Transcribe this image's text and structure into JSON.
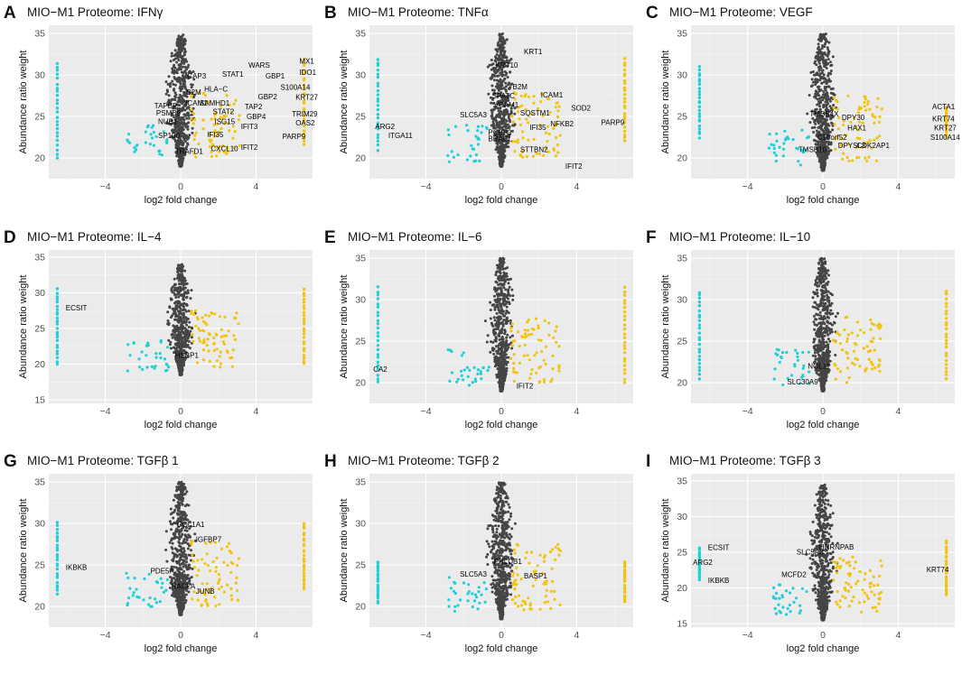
{
  "figure": {
    "colors": {
      "panel_bg": "#ebebeb",
      "grid_major": "#ffffff",
      "grid_minor": "#f5f5f5",
      "core": "#454545",
      "down": "#1fd0d8",
      "up": "#f2c410",
      "text": "#111111",
      "axis_text": "#4d4d4d"
    }
  },
  "chart_data": [
    {
      "type": "scatter",
      "panel": "A",
      "title": "MIO−M1 Proteome: IFNγ",
      "xlabel": "log2 fold change",
      "ylabel": "Abundance ratio weight",
      "xlim": [
        -7,
        7
      ],
      "ylim": [
        17.5,
        36
      ],
      "xticks": [
        -4,
        0,
        4
      ],
      "yticks": [
        20,
        25,
        30,
        35
      ],
      "core": {
        "center": 0,
        "ytop": 35,
        "ybottom": 19,
        "maxw": 1.0
      },
      "lanes": {
        "down": [
          20,
          31.5
        ],
        "up": [
          21.5,
          32
        ]
      },
      "labels": [
        {
          "text": "CAP3",
          "x": 0.35,
          "y": 29.6
        },
        {
          "text": "B2M",
          "x": 0.3,
          "y": 27.6
        },
        {
          "text": "HLA−C",
          "x": 1.25,
          "y": 28.0
        },
        {
          "text": "STAT1",
          "x": 2.2,
          "y": 29.8
        },
        {
          "text": "WARS",
          "x": 3.6,
          "y": 30.9
        },
        {
          "text": "GBP1",
          "x": 4.5,
          "y": 29.6
        },
        {
          "text": "GBP2",
          "x": 4.1,
          "y": 27.1
        },
        {
          "text": "S100A14",
          "x": 5.3,
          "y": 28.2
        },
        {
          "text": "MX1",
          "x": 6.3,
          "y": 31.4
        },
        {
          "text": "IDO1",
          "x": 6.3,
          "y": 30.0
        },
        {
          "text": "KRT27",
          "x": 6.1,
          "y": 27.0
        },
        {
          "text": "TRIM29",
          "x": 5.9,
          "y": 25.0
        },
        {
          "text": "OAS2",
          "x": 6.1,
          "y": 23.9
        },
        {
          "text": "PARP9",
          "x": 5.4,
          "y": 22.3
        },
        {
          "text": "TAPBP",
          "x": -1.4,
          "y": 26.0
        },
        {
          "text": "ICAM1",
          "x": 0.25,
          "y": 26.3
        },
        {
          "text": "SAMHD1",
          "x": 1.0,
          "y": 26.3
        },
        {
          "text": "TAP2",
          "x": 3.4,
          "y": 25.9
        },
        {
          "text": "STAT2",
          "x": 1.7,
          "y": 25.3
        },
        {
          "text": "PSMB9",
          "x": -1.3,
          "y": 25.1
        },
        {
          "text": "GBP4",
          "x": 3.5,
          "y": 24.7
        },
        {
          "text": "NUB1",
          "x": -1.2,
          "y": 24.1
        },
        {
          "text": "ISG15",
          "x": 1.8,
          "y": 24.1
        },
        {
          "text": "IFIT3",
          "x": 3.2,
          "y": 23.5
        },
        {
          "text": "IFI35",
          "x": 1.4,
          "y": 22.5
        },
        {
          "text": "SP100",
          "x": -1.2,
          "y": 22.4
        },
        {
          "text": "CXCL10",
          "x": 1.6,
          "y": 20.8
        },
        {
          "text": "IFIT2",
          "x": 3.2,
          "y": 21.0
        },
        {
          "text": "TRAFD1",
          "x": -0.3,
          "y": 20.5
        }
      ]
    },
    {
      "type": "scatter",
      "panel": "B",
      "title": "MIO−M1 Proteome: TNFα",
      "xlabel": "log2 fold change",
      "ylabel": "Abundance ratio weight",
      "xlim": [
        -7,
        7
      ],
      "ylim": [
        17.5,
        36
      ],
      "xticks": [
        -4,
        0,
        4
      ],
      "yticks": [
        20,
        25,
        30,
        35
      ],
      "core": {
        "center": 0,
        "ytop": 35,
        "ybottom": 19,
        "maxw": 1.0
      },
      "lanes": {
        "down": [
          21,
          32
        ],
        "up": [
          22,
          32
        ]
      },
      "labels": [
        {
          "text": "KRT1",
          "x": 1.2,
          "y": 32.5
        },
        {
          "text": "KRT10",
          "x": -0.3,
          "y": 30.9
        },
        {
          "text": "B2M",
          "x": 0.6,
          "y": 28.3
        },
        {
          "text": "ICAM1",
          "x": 2.1,
          "y": 27.3
        },
        {
          "text": "SPATC",
          "x": -0.5,
          "y": 27.2
        },
        {
          "text": "VCAM1",
          "x": -0.4,
          "y": 26.1
        },
        {
          "text": "SOD2",
          "x": 3.7,
          "y": 25.7
        },
        {
          "text": "SQSTM1",
          "x": 1.0,
          "y": 25.1
        },
        {
          "text": "SLC5A3",
          "x": -2.2,
          "y": 24.9
        },
        {
          "text": "NFKB2",
          "x": 2.6,
          "y": 23.8
        },
        {
          "text": "IFI35",
          "x": 1.5,
          "y": 23.4
        },
        {
          "text": "PARP9",
          "x": 5.3,
          "y": 24.0
        },
        {
          "text": "ARG2",
          "x": -6.7,
          "y": 23.5
        },
        {
          "text": "ITGA11",
          "x": -6.0,
          "y": 22.4
        },
        {
          "text": "PCBP3",
          "x": -0.7,
          "y": 22.8
        },
        {
          "text": "BRACL",
          "x": -0.7,
          "y": 22.0
        },
        {
          "text": "STTBN2",
          "x": 1.0,
          "y": 20.7
        },
        {
          "text": "IFIT2",
          "x": 3.4,
          "y": 18.7
        }
      ]
    },
    {
      "type": "scatter",
      "panel": "C",
      "title": "MIO−M1 Proteome: VEGF",
      "xlabel": "log2 fold change",
      "ylabel": "Abundance ratio weight",
      "xlim": [
        -7,
        7
      ],
      "ylim": [
        17.5,
        36
      ],
      "xticks": [
        -4,
        0,
        4
      ],
      "yticks": [
        20,
        25,
        30,
        35
      ],
      "core": {
        "center": 0,
        "ytop": 35,
        "ybottom": 18.5,
        "maxw": 1.0
      },
      "lanes": {
        "down": [
          22.5,
          31
        ],
        "up": [
          22.5,
          26
        ]
      },
      "labels": [
        {
          "text": "TMSB4X",
          "x": -0.7,
          "y": 25.0
        },
        {
          "text": "DPY30",
          "x": 1.0,
          "y": 24.6
        },
        {
          "text": "HAX1",
          "x": 1.3,
          "y": 23.3
        },
        {
          "text": "C18orf52",
          "x": -0.3,
          "y": 22.2
        },
        {
          "text": "DPYSL3",
          "x": 0.8,
          "y": 21.2
        },
        {
          "text": "CDK2AP1",
          "x": 1.8,
          "y": 21.2
        },
        {
          "text": "TMSB10",
          "x": -1.3,
          "y": 20.7
        },
        {
          "text": "ACTA1",
          "x": 5.8,
          "y": 25.9
        },
        {
          "text": "KRT74",
          "x": 5.8,
          "y": 24.4
        },
        {
          "text": "KRT27",
          "x": 5.9,
          "y": 23.3
        },
        {
          "text": "S100A14",
          "x": 5.7,
          "y": 22.2
        }
      ]
    },
    {
      "type": "scatter",
      "panel": "D",
      "title": "MIO−M1 Proteome: IL−4",
      "xlabel": "log2 fold change",
      "ylabel": "Abundance ratio weight",
      "xlim": [
        -7,
        7
      ],
      "ylim": [
        14.5,
        36
      ],
      "xticks": [
        -4,
        0,
        4
      ],
      "yticks": [
        15,
        20,
        25,
        30,
        35
      ],
      "core": {
        "center": 0,
        "ytop": 34,
        "ybottom": 18.5,
        "maxw": 0.9
      },
      "lanes": {
        "down": [
          20,
          30.5
        ],
        "up": [
          20,
          30.5
        ]
      },
      "labels": [
        {
          "text": "ECSIT",
          "x": -6.1,
          "y": 27.5
        },
        {
          "text": "HSBP1",
          "x": -0.3,
          "y": 20.9
        }
      ]
    },
    {
      "type": "scatter",
      "panel": "E",
      "title": "MIO−M1 Proteome: IL−6",
      "xlabel": "log2 fold change",
      "ylabel": "Abundance ratio weight",
      "xlim": [
        -7,
        7
      ],
      "ylim": [
        17.5,
        36
      ],
      "xticks": [
        -4,
        0,
        4
      ],
      "yticks": [
        20,
        25,
        30,
        35
      ],
      "core": {
        "center": 0,
        "ytop": 35,
        "ybottom": 19,
        "maxw": 0.9
      },
      "lanes": {
        "down": [
          20,
          31.5
        ],
        "up": [
          20,
          31.5
        ]
      },
      "labels": [
        {
          "text": "CA2",
          "x": -6.8,
          "y": 21.3
        },
        {
          "text": "IFIT2",
          "x": 0.8,
          "y": 19.3
        }
      ]
    },
    {
      "type": "scatter",
      "panel": "F",
      "title": "MIO−M1 Proteome: IL−10",
      "xlabel": "log2 fold change",
      "ylabel": "Abundance ratio weight",
      "xlim": [
        -7,
        7
      ],
      "ylim": [
        17.5,
        36
      ],
      "xticks": [
        -4,
        0,
        4
      ],
      "yticks": [
        20,
        25,
        30,
        35
      ],
      "core": {
        "center": 0,
        "ytop": 35,
        "ybottom": 19,
        "maxw": 0.9
      },
      "lanes": {
        "down": [
          20.5,
          31
        ],
        "up": [
          20.5,
          31
        ]
      },
      "labels": [
        {
          "text": "NOL11",
          "x": -0.8,
          "y": 21.7
        },
        {
          "text": "SLC30A9",
          "x": -1.9,
          "y": 19.8
        }
      ]
    },
    {
      "type": "scatter",
      "panel": "G",
      "title": "MIO−M1 Proteome: TGFβ 1",
      "xlabel": "log2 fold change",
      "ylabel": "Abundance ratio weight",
      "xlim": [
        -7,
        7
      ],
      "ylim": [
        17.5,
        36
      ],
      "xticks": [
        -4,
        0,
        4
      ],
      "yticks": [
        20,
        25,
        30,
        35
      ],
      "core": {
        "center": 0,
        "ytop": 35,
        "ybottom": 19,
        "maxw": 1.0
      },
      "lanes": {
        "down": [
          21.5,
          30
        ],
        "up": [
          22,
          30
        ]
      },
      "labels": [
        {
          "text": "COL1A1",
          "x": -0.2,
          "y": 29.6
        },
        {
          "text": "IGFBP7",
          "x": 0.8,
          "y": 27.8
        },
        {
          "text": "IKBKB",
          "x": -6.1,
          "y": 24.4
        },
        {
          "text": "PDE5A",
          "x": -1.6,
          "y": 24.0
        },
        {
          "text": "RACLA",
          "x": -0.5,
          "y": 22.1
        },
        {
          "text": "JUNB",
          "x": 0.8,
          "y": 21.5
        }
      ]
    },
    {
      "type": "scatter",
      "panel": "H",
      "title": "MIO−M1 Proteome: TGFβ 2",
      "xlabel": "log2 fold change",
      "ylabel": "Abundance ratio weight",
      "xlim": [
        -7,
        7
      ],
      "ylim": [
        17.5,
        36
      ],
      "xticks": [
        -4,
        0,
        4
      ],
      "yticks": [
        20,
        25,
        30,
        35
      ],
      "core": {
        "center": 0,
        "ytop": 35,
        "ybottom": 18.5,
        "maxw": 1.0
      },
      "lanes": {
        "down": [
          20.5,
          25.5
        ],
        "up": [
          20.5,
          25.5
        ]
      },
      "labels": [
        {
          "text": "PHLDB1",
          "x": -0.4,
          "y": 25.1
        },
        {
          "text": "SLC5A3",
          "x": -2.2,
          "y": 23.6
        },
        {
          "text": "BASP1",
          "x": 1.2,
          "y": 23.4
        }
      ]
    },
    {
      "type": "scatter",
      "panel": "I",
      "title": "MIO−M1 Proteome: TGFβ 3",
      "xlabel": "log2 fold change",
      "ylabel": "Abundance ratio weight",
      "xlim": [
        -7,
        7
      ],
      "ylim": [
        14.5,
        36
      ],
      "xticks": [
        -4,
        0,
        4
      ],
      "yticks": [
        15,
        20,
        25,
        30,
        35
      ],
      "core": {
        "center": 0,
        "ytop": 34.5,
        "ybottom": 15.5,
        "maxw": 1.0
      },
      "lanes": {
        "down": [
          21,
          25.5
        ],
        "up": [
          19,
          26.5
        ]
      },
      "labels": [
        {
          "text": "ECSIT",
          "x": -6.1,
          "y": 25.3
        },
        {
          "text": "HNRNPAB",
          "x": -0.2,
          "y": 25.4
        },
        {
          "text": "SLC5A3",
          "x": -1.4,
          "y": 24.7
        },
        {
          "text": "ARG2",
          "x": -6.9,
          "y": 23.2
        },
        {
          "text": "MCFD2",
          "x": -2.2,
          "y": 21.5
        },
        {
          "text": "IKBKB",
          "x": -6.1,
          "y": 20.7
        },
        {
          "text": "KRT74",
          "x": 5.5,
          "y": 22.2
        }
      ]
    }
  ]
}
